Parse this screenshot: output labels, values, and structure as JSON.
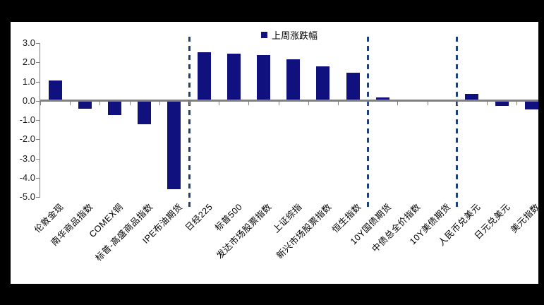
{
  "chart_data": {
    "type": "bar",
    "title": "",
    "xlabel": "",
    "ylabel": "",
    "legend": [
      "上周涨跌幅"
    ],
    "legend_position": "top-center",
    "grid": false,
    "categories": [
      "伦敦金现",
      "南华商品指数",
      "COMEX铜",
      "标普-高盛商品指数",
      "IPE布油期货",
      "日经225",
      "标普500",
      "发达市场股票指数",
      "上证综指",
      "新兴市场股票指数",
      "恒生指数",
      "10Y国债期货",
      "中债总全价指数",
      "10Y美债期货",
      "人民币兑美元",
      "日元兑美元",
      "美元指数"
    ],
    "values": [
      1.05,
      -0.4,
      -0.72,
      -1.2,
      -4.6,
      2.55,
      2.45,
      2.4,
      2.15,
      1.8,
      1.45,
      0.17,
      0.07,
      0.0,
      0.38,
      -0.25,
      -0.45
    ],
    "ylim": [
      -5.0,
      3.0
    ],
    "ytick_labels": [
      "3.0",
      "2.0",
      "1.0",
      "0.0",
      "-1.0",
      "-2.0",
      "-3.0",
      "-4.0",
      "-5.0"
    ],
    "group_separators_after_index": [
      4,
      10,
      13
    ],
    "colors": {
      "bar": "#10107E",
      "separator_dashed_line": "#1F4173",
      "zero_line": "#808080",
      "axis": "#808080",
      "panel_background": "#FFFFFF",
      "outer_background": "#000000",
      "text": "#000000"
    }
  }
}
